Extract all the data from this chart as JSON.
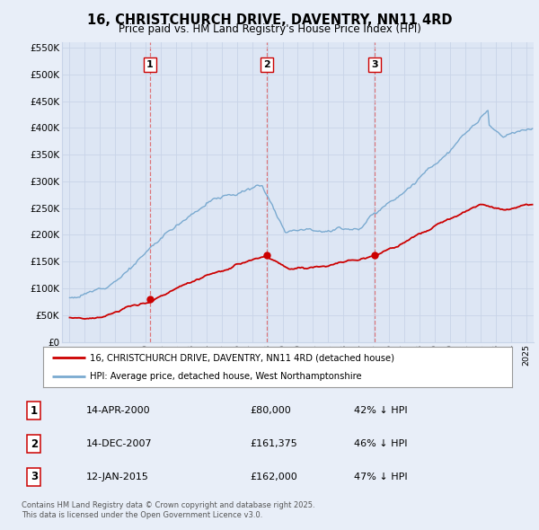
{
  "title": "16, CHRISTCHURCH DRIVE, DAVENTRY, NN11 4RD",
  "subtitle": "Price paid vs. HM Land Registry's House Price Index (HPI)",
  "bg_color": "#e8eef8",
  "plot_bg_color": "#dde6f4",
  "grid_color": "#c8d4e8",
  "red_color": "#cc0000",
  "blue_color": "#7aaad0",
  "dashed_color": "#dd4444",
  "ylim": [
    0,
    560000
  ],
  "yticks": [
    0,
    50000,
    100000,
    150000,
    200000,
    250000,
    300000,
    350000,
    400000,
    450000,
    500000,
    550000
  ],
  "ytick_labels": [
    "£0",
    "£50K",
    "£100K",
    "£150K",
    "£200K",
    "£250K",
    "£300K",
    "£350K",
    "£400K",
    "£450K",
    "£500K",
    "£550K"
  ],
  "transactions": [
    {
      "date_num": 2000.28,
      "price": 80000,
      "label": "1"
    },
    {
      "date_num": 2007.95,
      "price": 161375,
      "label": "2"
    },
    {
      "date_num": 2015.04,
      "price": 162000,
      "label": "3"
    }
  ],
  "legend_entries": [
    "16, CHRISTCHURCH DRIVE, DAVENTRY, NN11 4RD (detached house)",
    "HPI: Average price, detached house, West Northamptonshire"
  ],
  "table_rows": [
    {
      "num": "1",
      "date": "14-APR-2000",
      "price": "£80,000",
      "hpi": "42% ↓ HPI"
    },
    {
      "num": "2",
      "date": "14-DEC-2007",
      "price": "£161,375",
      "hpi": "46% ↓ HPI"
    },
    {
      "num": "3",
      "date": "12-JAN-2015",
      "price": "£162,000",
      "hpi": "47% ↓ HPI"
    }
  ],
  "footer": "Contains HM Land Registry data © Crown copyright and database right 2025.\nThis data is licensed under the Open Government Licence v3.0.",
  "xmin": 1994.5,
  "xmax": 2025.5
}
